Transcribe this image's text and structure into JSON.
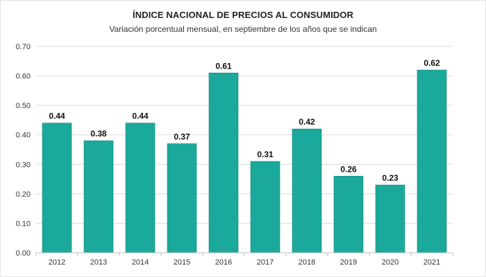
{
  "chart_data": {
    "type": "bar",
    "title": "ÍNDICE NACIONAL DE PRECIOS AL CONSUMIDOR",
    "subtitle": "Variación porcentual mensual, en septiembre de los años que se indican",
    "categories": [
      "2012",
      "2013",
      "2014",
      "2015",
      "2016",
      "2017",
      "2018",
      "2019",
      "2020",
      "2021"
    ],
    "values": [
      0.44,
      0.38,
      0.44,
      0.37,
      0.61,
      0.31,
      0.42,
      0.26,
      0.23,
      0.62
    ],
    "data_labels": [
      "0.44",
      "0.38",
      "0.44",
      "0.37",
      "0.61",
      "0.31",
      "0.42",
      "0.26",
      "0.23",
      "0.62"
    ],
    "yticks": [
      "0.00",
      "0.10",
      "0.20",
      "0.30",
      "0.40",
      "0.50",
      "0.60",
      "0.70"
    ],
    "ylim": [
      0,
      0.7
    ],
    "xlabel": "",
    "ylabel": "",
    "grid": true,
    "legend": "none",
    "colors": {
      "bar": "#1aa99a",
      "bar_edge": "#128a7d",
      "grid": "#d9d9d9",
      "axis": "#bfbfbf"
    }
  }
}
